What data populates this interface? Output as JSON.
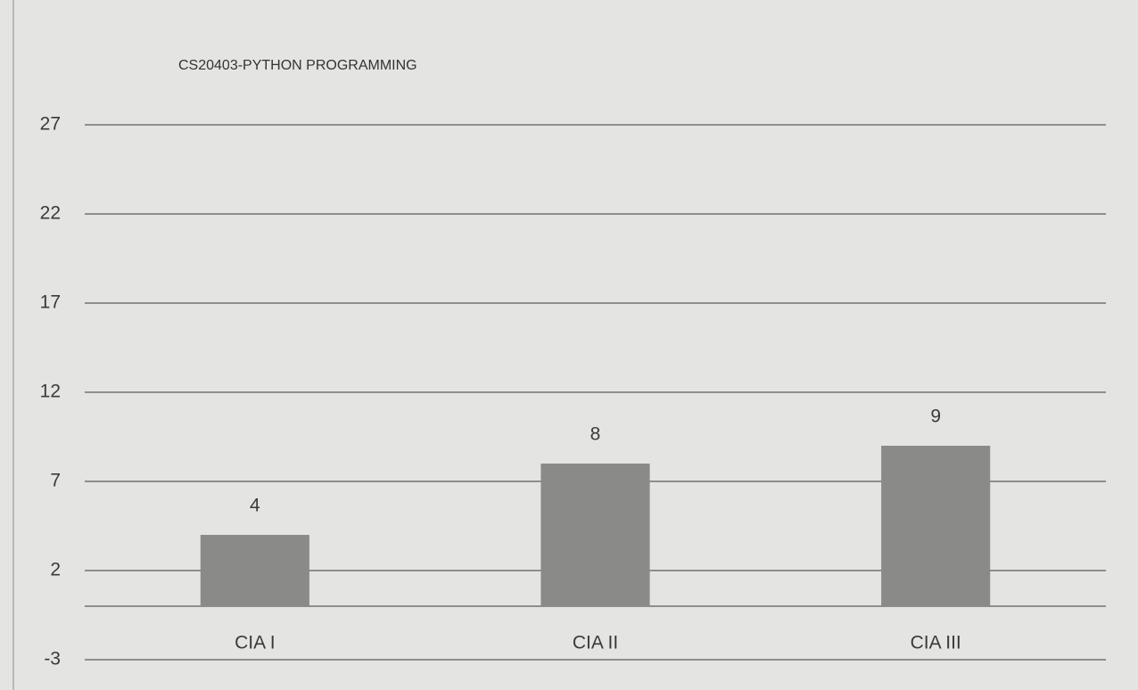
{
  "chart_data": {
    "type": "bar",
    "title": "CS20403-PYTHON PROGRAMMING",
    "categories": [
      "CIA I",
      "CIA II",
      "CIA III"
    ],
    "values": [
      4,
      8,
      9
    ],
    "color": "#8a8a88",
    "ylim": [
      -3,
      27
    ],
    "yticks": [
      -3,
      2,
      7,
      12,
      17,
      22,
      27
    ],
    "grid": true
  }
}
